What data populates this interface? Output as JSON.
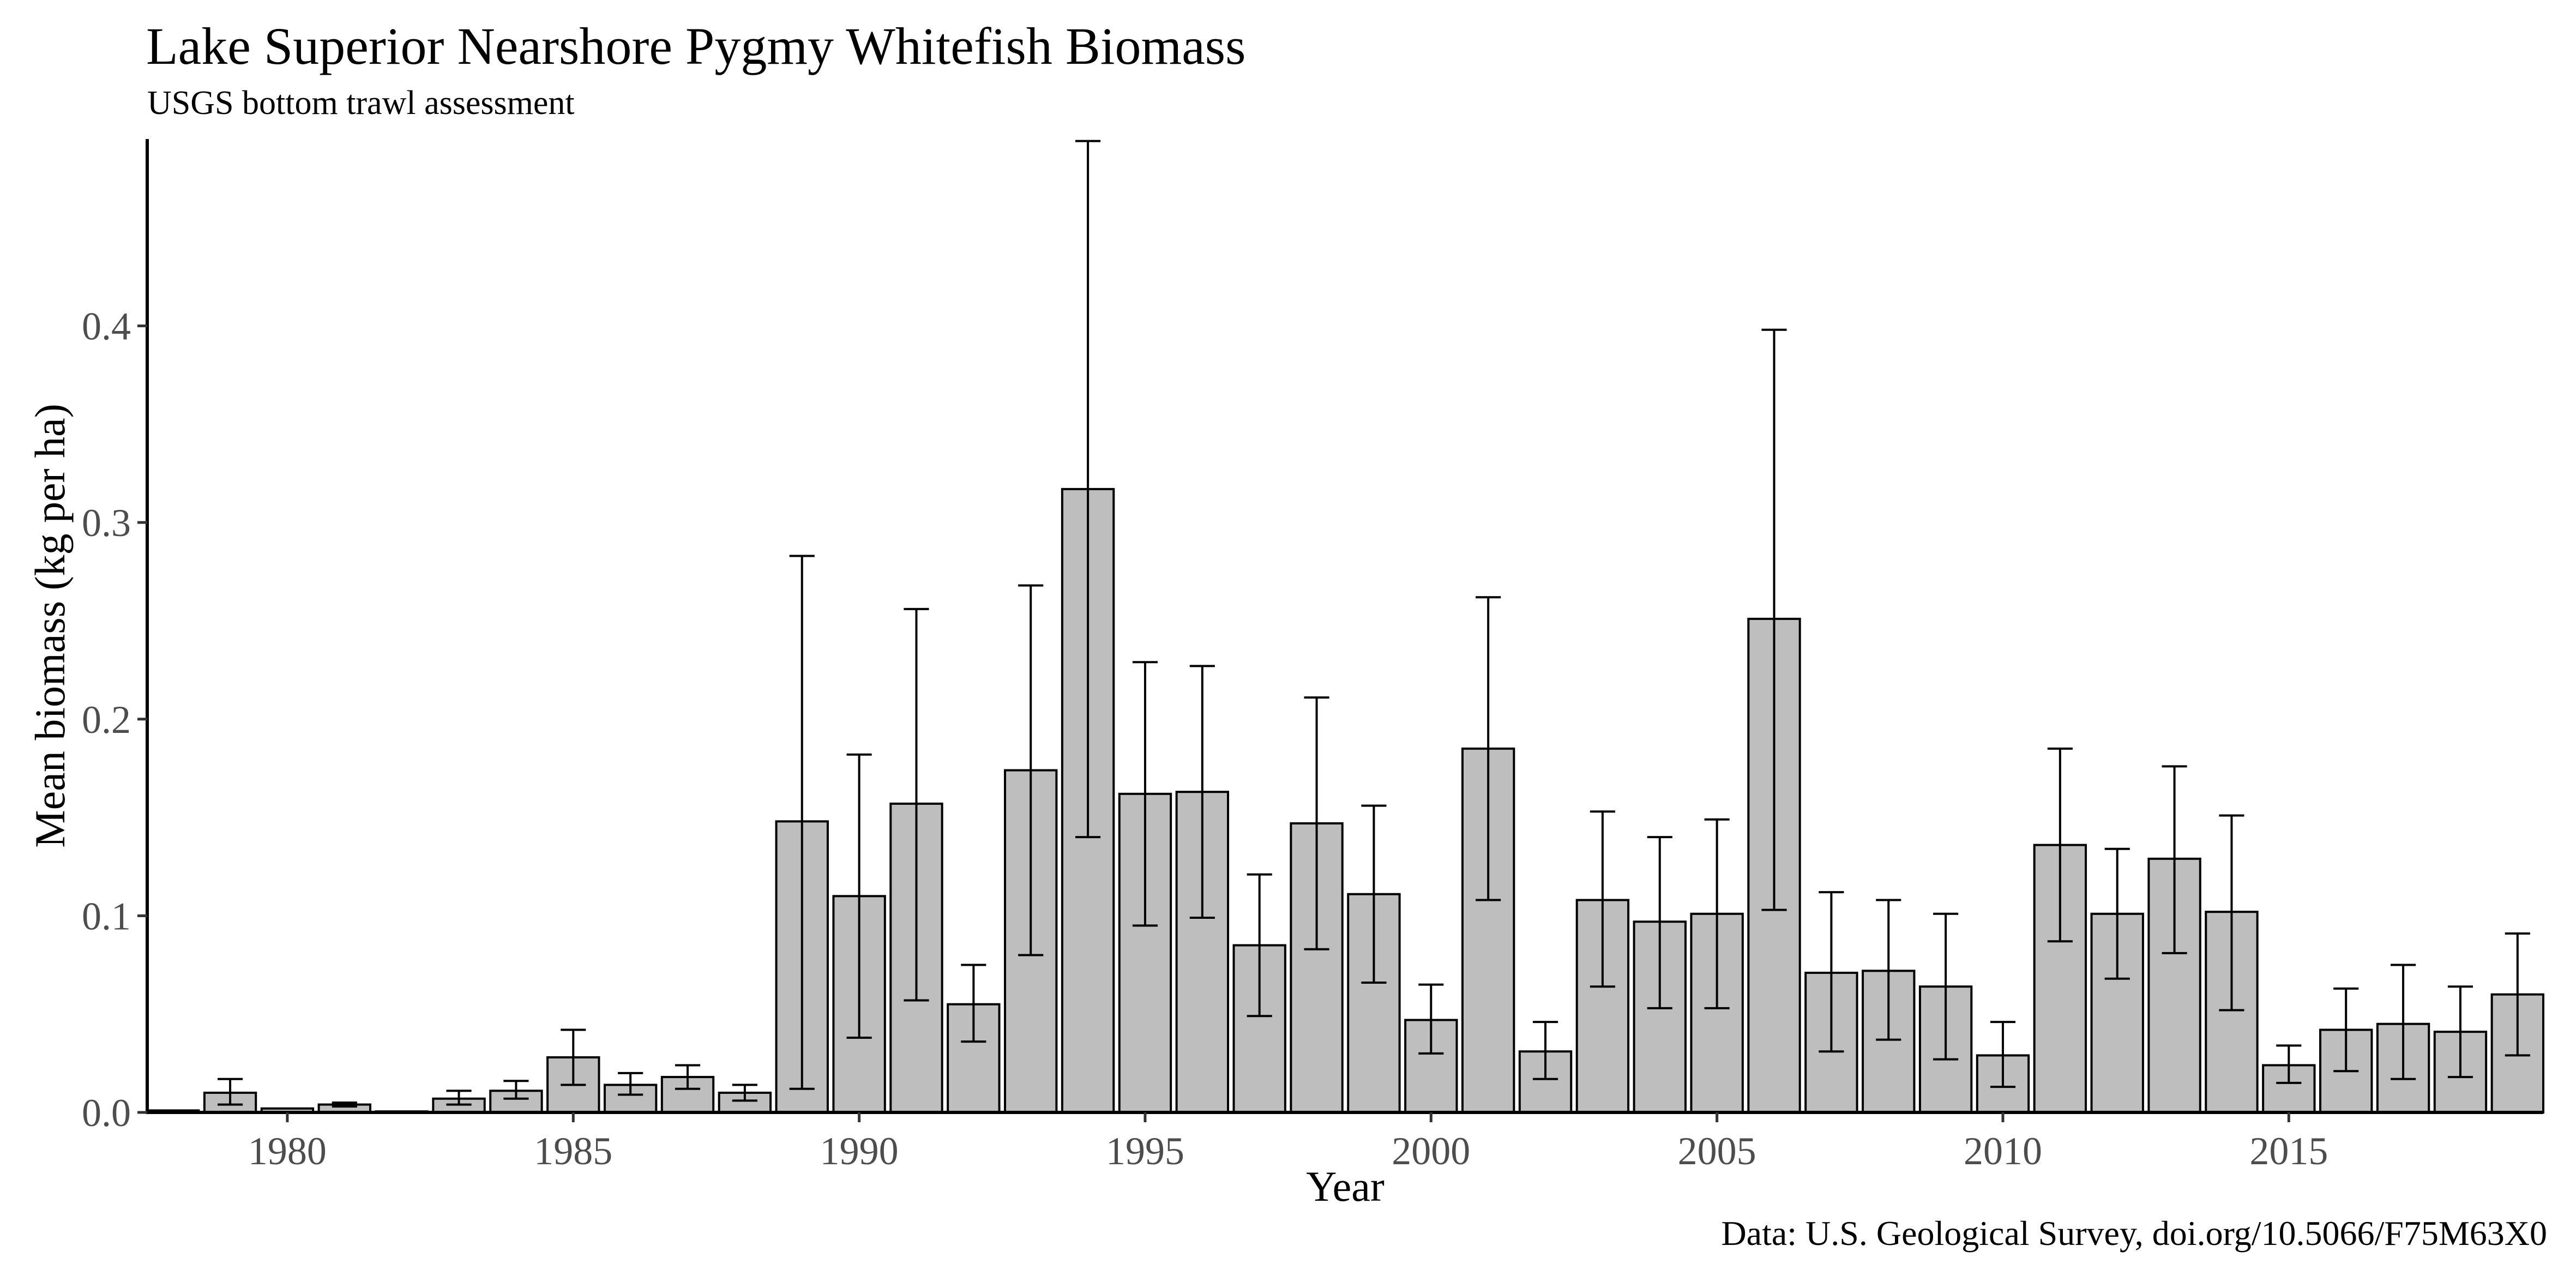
{
  "chart_data": {
    "type": "bar",
    "title": "Lake Superior Nearshore Pygmy Whitefish Biomass",
    "subtitle": "USGS bottom trawl assessment",
    "caption": "Data: U.S. Geological Survey, doi.org/10.5066/F75M63X0",
    "xlabel": "Year",
    "ylabel": "Mean biomass (kg per ha)",
    "ylim": [
      0,
      0.495
    ],
    "xlim": [
      1977.55,
      2019.45
    ],
    "x_ticks": [
      1980,
      1985,
      1990,
      1995,
      2000,
      2005,
      2010,
      2015
    ],
    "x_tick_labels": [
      "1980",
      "1985",
      "1990",
      "1995",
      "2000",
      "2005",
      "2010",
      "2015"
    ],
    "y_ticks": [
      0.0,
      0.1,
      0.2,
      0.3,
      0.4
    ],
    "y_tick_labels": [
      "0.0",
      "0.1",
      "0.2",
      "0.3",
      "0.4"
    ],
    "grid": false,
    "legend": "none",
    "colors": {
      "bar_fill": "#bebebe",
      "bar_stroke": "#000000",
      "error_bar": "#000000"
    },
    "x": [
      1978,
      1979,
      1980,
      1981,
      1982,
      1983,
      1984,
      1985,
      1986,
      1987,
      1988,
      1989,
      1990,
      1991,
      1992,
      1993,
      1994,
      1995,
      1996,
      1997,
      1998,
      1999,
      2000,
      2001,
      2002,
      2003,
      2004,
      2005,
      2006,
      2007,
      2008,
      2009,
      2010,
      2011,
      2012,
      2013,
      2014,
      2015,
      2016,
      2017,
      2018,
      2019
    ],
    "values": [
      0.001,
      0.01,
      0.002,
      0.004,
      0.0005,
      0.007,
      0.011,
      0.028,
      0.014,
      0.018,
      0.01,
      0.148,
      0.11,
      0.157,
      0.055,
      0.174,
      0.317,
      0.162,
      0.163,
      0.085,
      0.147,
      0.111,
      0.047,
      0.185,
      0.031,
      0.108,
      0.097,
      0.101,
      0.251,
      0.071,
      0.072,
      0.064,
      0.029,
      0.136,
      0.101,
      0.129,
      0.102,
      0.024,
      0.042,
      0.045,
      0.041,
      0.06
    ],
    "error_low": [
      null,
      0.004,
      null,
      0.003,
      null,
      0.004,
      0.007,
      0.014,
      0.009,
      0.012,
      0.006,
      0.012,
      0.038,
      0.057,
      0.036,
      0.08,
      0.14,
      0.095,
      0.099,
      0.049,
      0.083,
      0.066,
      0.03,
      0.108,
      0.017,
      0.064,
      0.053,
      0.053,
      0.103,
      0.031,
      0.037,
      0.027,
      0.013,
      0.087,
      0.068,
      0.081,
      0.052,
      0.015,
      0.021,
      0.017,
      0.018,
      0.029
    ],
    "error_high": [
      null,
      0.017,
      null,
      0.005,
      null,
      0.011,
      0.016,
      0.042,
      0.02,
      0.024,
      0.014,
      0.283,
      0.182,
      0.256,
      0.075,
      0.268,
      0.494,
      0.229,
      0.227,
      0.121,
      0.211,
      0.156,
      0.065,
      0.262,
      0.046,
      0.153,
      0.14,
      0.149,
      0.398,
      0.112,
      0.108,
      0.101,
      0.046,
      0.185,
      0.134,
      0.176,
      0.151,
      0.034,
      0.063,
      0.075,
      0.064,
      0.091
    ]
  }
}
